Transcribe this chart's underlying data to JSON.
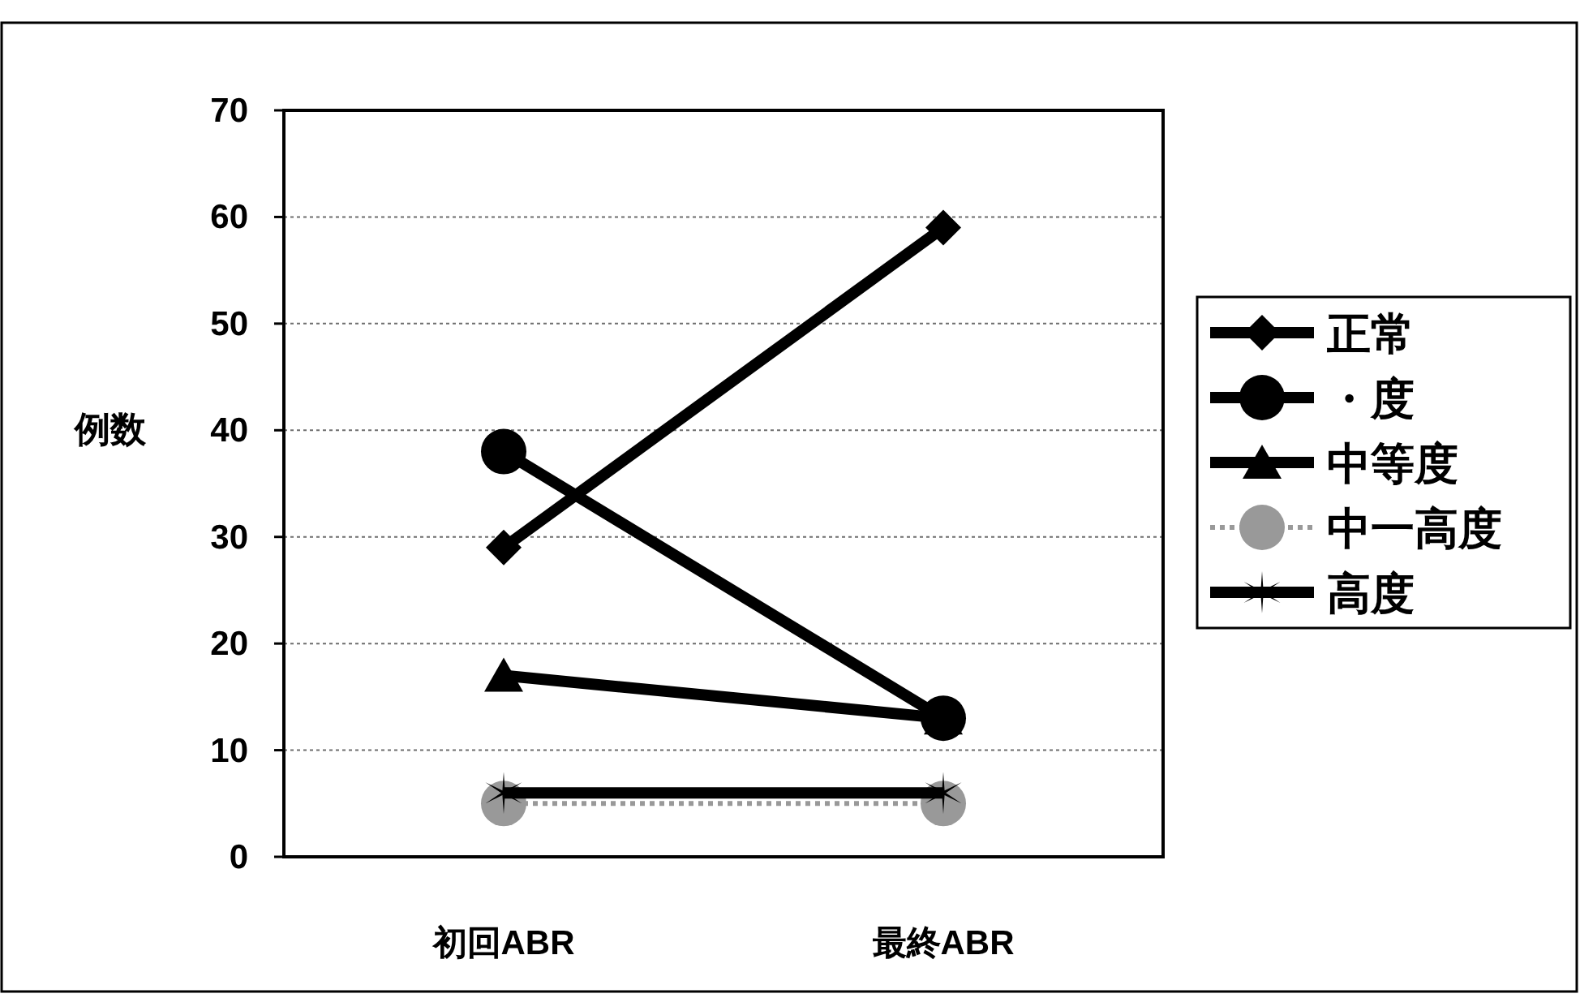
{
  "chart_data": {
    "type": "line",
    "ylabel": "例数",
    "categories": [
      "初回ABR",
      "最終ABR"
    ],
    "series": [
      {
        "name": "正常",
        "color": "#000000",
        "marker": "diamond",
        "values": [
          29,
          59
        ]
      },
      {
        "name": "・度",
        "color": "#000000",
        "marker": "circle",
        "values": [
          38,
          13
        ]
      },
      {
        "name": "中等度",
        "color": "#000000",
        "marker": "triangle",
        "values": [
          17,
          13
        ]
      },
      {
        "name": "中一高度",
        "color": "#999999",
        "marker": "circle",
        "line_style": "dotted",
        "values": [
          5,
          5
        ]
      },
      {
        "name": "高度",
        "color": "#000000",
        "marker": "cross",
        "values": [
          6,
          6
        ]
      }
    ],
    "ylim": [
      0,
      70
    ],
    "yticks": [
      0,
      10,
      20,
      30,
      40,
      50,
      60,
      70
    ],
    "grid": "y",
    "legend": "right"
  }
}
